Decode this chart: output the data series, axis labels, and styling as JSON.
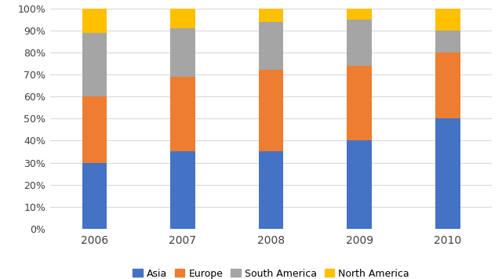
{
  "years": [
    "2006",
    "2007",
    "2008",
    "2009",
    "2010"
  ],
  "asia": [
    30,
    35,
    35,
    40,
    50
  ],
  "europe": [
    30,
    34,
    37,
    34,
    30
  ],
  "south_america": [
    29,
    22,
    22,
    21,
    10
  ],
  "north_america": [
    11,
    9,
    6,
    5,
    10
  ],
  "colors": {
    "asia": "#4472c4",
    "europe": "#ed7d31",
    "south_america": "#a5a5a5",
    "north_america": "#ffc000"
  },
  "ylim": [
    0,
    100
  ],
  "yticks": [
    0,
    10,
    20,
    30,
    40,
    50,
    60,
    70,
    80,
    90,
    100
  ],
  "ytick_labels": [
    "0%",
    "10%",
    "20%",
    "30%",
    "40%",
    "50%",
    "60%",
    "70%",
    "80%",
    "90%",
    "100%"
  ],
  "bar_width": 0.28,
  "background_color": "#ffffff",
  "grid_color": "#d9d9d9"
}
